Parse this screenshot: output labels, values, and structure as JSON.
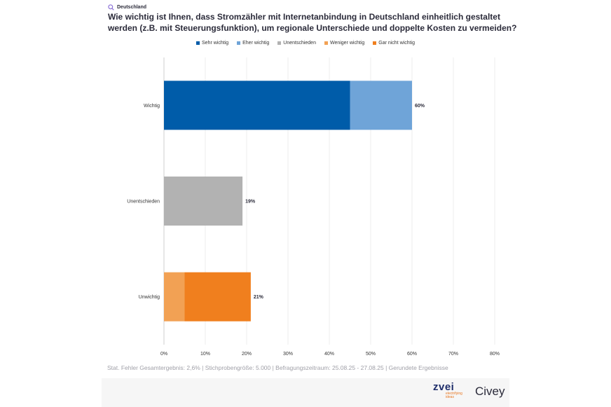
{
  "header": {
    "region": "Deutschland",
    "question": "Wie wichtig ist Ihnen, dass Stromzähler mit Internetanbindung in Deutschland einheitlich gestaltet werden (z.B. mit Steuerungsfunktion), um regionale Unterschiede und doppelte Kosten zu vermeiden?"
  },
  "legend": [
    {
      "label": "Sehr wichtig",
      "color": "#005ca9"
    },
    {
      "label": "Eher wichtig",
      "color": "#6fa4d8"
    },
    {
      "label": "Unentschieden",
      "color": "#b2b2b2"
    },
    {
      "label": "Weniger wichtig",
      "color": "#f2a154"
    },
    {
      "label": "Gar nicht wichtig",
      "color": "#f07f1e"
    }
  ],
  "chart_data": {
    "type": "bar",
    "orientation": "horizontal",
    "stacked": true,
    "categories": [
      "Wichtig",
      "Unentschieden",
      "Unwichtig"
    ],
    "series": [
      {
        "name": "Sehr wichtig",
        "color": "#005ca9",
        "values": [
          45,
          0,
          0
        ]
      },
      {
        "name": "Eher wichtig",
        "color": "#6fa4d8",
        "values": [
          15,
          0,
          0
        ]
      },
      {
        "name": "Unentschieden",
        "color": "#b2b2b2",
        "values": [
          0,
          19,
          0
        ]
      },
      {
        "name": "Weniger wichtig",
        "color": "#f2a154",
        "values": [
          0,
          0,
          5
        ]
      },
      {
        "name": "Gar nicht wichtig",
        "color": "#f07f1e",
        "values": [
          0,
          0,
          16
        ]
      }
    ],
    "totals": [
      "60%",
      "19%",
      "21%"
    ],
    "xlim": [
      0,
      80
    ],
    "xticks": [
      "0%",
      "10%",
      "20%",
      "30%",
      "40%",
      "50%",
      "60%",
      "70%",
      "80%"
    ],
    "grid": true,
    "legend_position": "top"
  },
  "footer": {
    "note": "Stat. Fehler Gesamtergebnis: 2,6% | Stichprobengröße: 5.000 | Befragungszeitraum: 25.08.25 - 27.08.25 | Gerundete Ergebnisse",
    "zvei_name": "zvei",
    "zvei_tagline": "electrifying ideas",
    "civey_name": "Civey"
  }
}
